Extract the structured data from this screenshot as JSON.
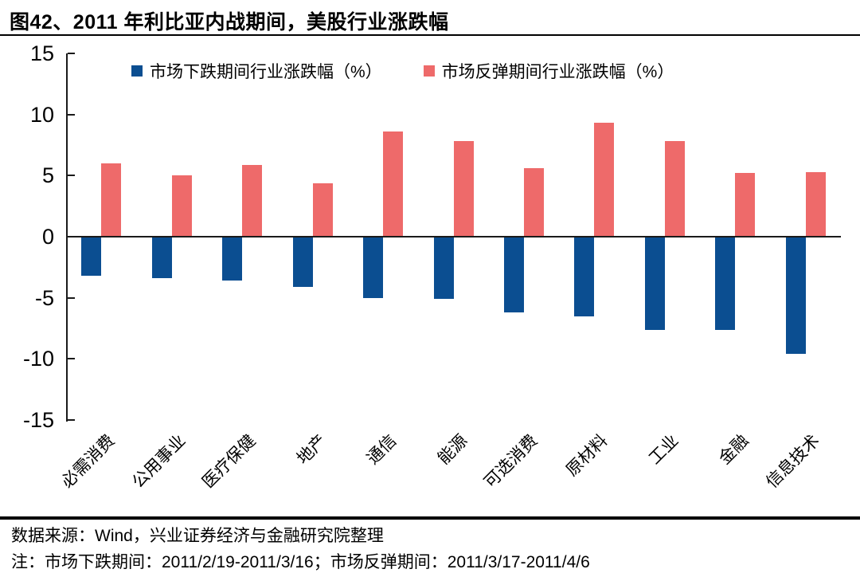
{
  "title": "图42、2011 年利比亚内战期间，美股行业涨跌幅",
  "chart_data": {
    "type": "bar",
    "title": "图42、2011 年利比亚内战期间，美股行业涨跌幅",
    "categories": [
      "必需消费",
      "公用事业",
      "医疗保健",
      "地产",
      "通信",
      "能源",
      "可选消费",
      "原材料",
      "工业",
      "金融",
      "信息技术"
    ],
    "series": [
      {
        "name": "市场下跌期间行业涨跌幅（%）",
        "color": "#0B4E91",
        "values": [
          -3.2,
          -3.4,
          -3.6,
          -4.1,
          -5.0,
          -5.1,
          -6.2,
          -6.5,
          -7.6,
          -7.6,
          -9.6
        ]
      },
      {
        "name": "市场反弹期间行业涨跌幅（%）",
        "color": "#EE6A6A",
        "values": [
          6.0,
          5.0,
          5.9,
          4.4,
          8.6,
          7.8,
          5.6,
          9.3,
          7.8,
          5.2,
          5.3
        ]
      }
    ],
    "xlabel": "",
    "ylabel": "",
    "ylim": [
      -15,
      15
    ],
    "yticks": [
      15,
      10,
      5,
      0,
      -5,
      -10,
      -15
    ],
    "grid": false,
    "legend_position": "top"
  },
  "footer": {
    "source": "数据来源：Wind，兴业证券经济与金融研究院整理",
    "note": "注：市场下跌期间：2011/2/19-2011/3/16；市场反弹期间：2011/3/17-2011/4/6"
  }
}
